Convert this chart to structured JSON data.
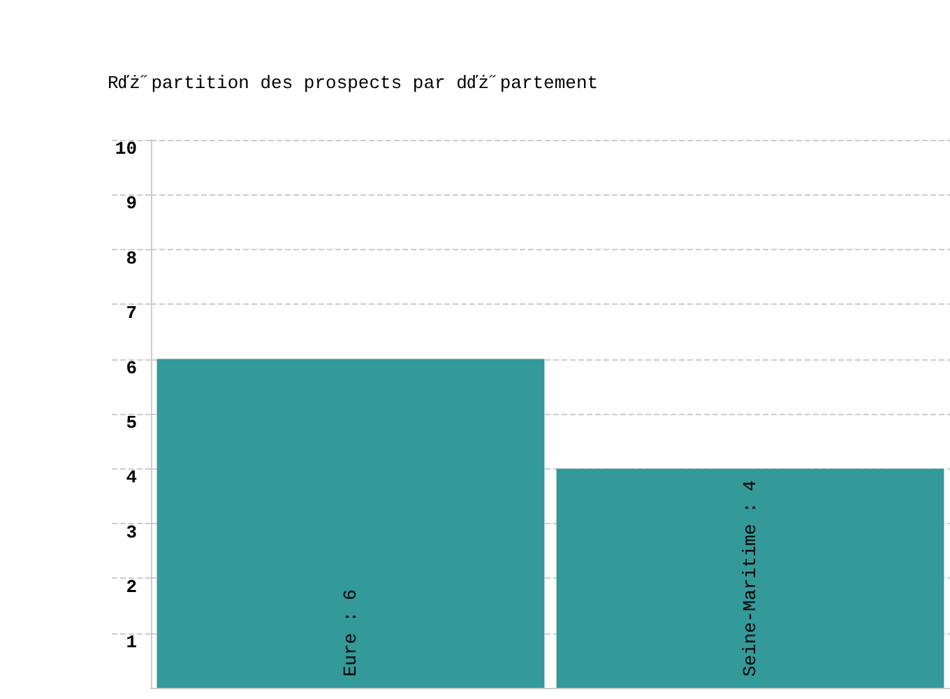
{
  "chart_data": {
    "type": "bar",
    "title": "Rďż˝partition des prospects par dďż˝partement",
    "categories": [
      null,
      null
    ],
    "values": [
      6,
      4
    ],
    "value_labels": [
      "Eure : 6",
      "Seine-Maritime : 4"
    ],
    "color": "#339999",
    "ylim": [
      0,
      10
    ],
    "yticks": [
      1,
      2,
      3,
      4,
      5,
      6,
      7,
      8,
      9,
      10
    ],
    "grid": "y"
  }
}
